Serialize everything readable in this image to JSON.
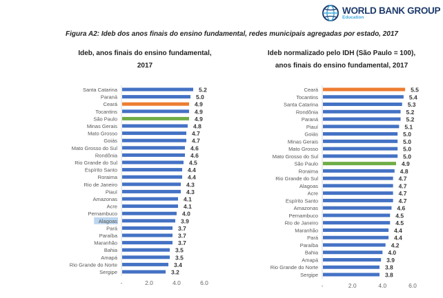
{
  "logo": {
    "main": "WORLD BANK GROUP",
    "sub": "Education"
  },
  "figure_title": "Figura A2: Ideb dos anos finais do ensino fundamental, redes municipais agregadas por estado, 2017",
  "colors": {
    "default": "#4472c4",
    "ceara": "#ed7d31",
    "sao_paulo": "#70ad47",
    "highlight": "#bcd6ee"
  },
  "chart_data": [
    {
      "type": "bar",
      "orientation": "horizontal",
      "title_lines": [
        "Ideb, anos finais do ensino fundamental,",
        "2017"
      ],
      "xlim": [
        0,
        6
      ],
      "xticks": [
        "-",
        "2.0",
        "4.0",
        "6.0"
      ],
      "xtick_values": [
        0,
        2,
        4,
        6
      ],
      "categories": [
        "Santa Catarina",
        "Paraná",
        "Ceará",
        "Tocantins",
        "São Paulo",
        "Minas Gerais",
        "Mato Grosso",
        "Goiás",
        "Mato Grosso do Sul",
        "Rondônia",
        "Rio Grande do Sul",
        "Espírito Santo",
        "Roraima",
        "Rio de Janeiro",
        "Piauí",
        "Amazonas",
        "Acre",
        "Pernambuco",
        "Alagoas",
        "Pará",
        "Paraíba",
        "Maranhão",
        "Bahia",
        "Amapá",
        "Rio Grande do Norte",
        "Sergipe"
      ],
      "values": [
        5.2,
        5.0,
        4.9,
        4.9,
        4.9,
        4.8,
        4.7,
        4.7,
        4.6,
        4.6,
        4.5,
        4.4,
        4.4,
        4.3,
        4.3,
        4.1,
        4.1,
        4.0,
        3.9,
        3.7,
        3.7,
        3.7,
        3.5,
        3.5,
        3.4,
        3.2
      ],
      "labels": [
        "5.2",
        "5.0",
        "4.9",
        "4.9",
        "4.9",
        "4.8",
        "4.7",
        "4.7",
        "4.6",
        "4.6",
        "4.5",
        "4.4",
        "4.4",
        "4.3",
        "4.3",
        "4.1",
        "4.1",
        "4.0",
        "3.9",
        "3.7",
        "3.7",
        "3.7",
        "3.5",
        "3.5",
        "3.4",
        "3.2"
      ],
      "highlighted_label": "Alagoas"
    },
    {
      "type": "bar",
      "orientation": "horizontal",
      "title_lines": [
        "Ideb normalizado pelo IDH (São Paulo = 100),",
        "anos finais do ensino fundamental, 2017"
      ],
      "xlim": [
        0,
        6
      ],
      "xticks": [
        "-",
        "2.0",
        "4.0",
        "6.0"
      ],
      "xtick_values": [
        0,
        2,
        4,
        6
      ],
      "categories": [
        "Ceará",
        "Tocantins",
        "Santa Catarina",
        "Rondônia",
        "Paraná",
        "Piauí",
        "Goiás",
        "Minas Gerais",
        "Mato Grosso",
        "Mato Grosso do Sul",
        "São Paulo",
        "Roraima",
        "Rio Grande do Sul",
        "Alagoas",
        "Acre",
        "Espírito Santo",
        "Amazonas",
        "Pernambuco",
        "Rio de Janeiro",
        "Maranhão",
        "Pará",
        "Paraíba",
        "Bahia",
        "Amapá",
        "Rio Grande do Norte",
        "Sergipe"
      ],
      "values": [
        5.5,
        5.4,
        5.3,
        5.2,
        5.2,
        5.1,
        5.0,
        5.0,
        5.0,
        5.0,
        4.9,
        4.8,
        4.7,
        4.7,
        4.7,
        4.7,
        4.6,
        4.5,
        4.5,
        4.4,
        4.4,
        4.2,
        4.0,
        3.9,
        3.8,
        3.8
      ],
      "labels": [
        "5.5",
        "5.4",
        "5.3",
        "5.2",
        "5.2",
        "5.1",
        "5.0",
        "5.0",
        "5.0",
        "5.0",
        "4.9",
        "4.8",
        "4.7",
        "4.7",
        "4.7",
        "4.7",
        "4.6",
        "4.5",
        "4.5",
        "4.4",
        "4.4",
        "4.2",
        "4.0",
        "3.9",
        "3.8",
        "3.8"
      ]
    }
  ]
}
